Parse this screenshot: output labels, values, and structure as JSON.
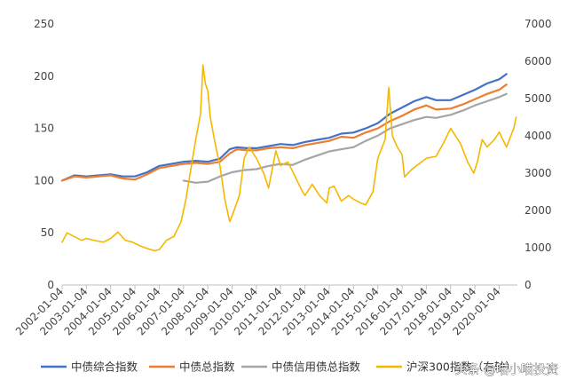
{
  "chart_data": {
    "type": "line",
    "title": "",
    "xlabel": "",
    "ylabel": "",
    "x_ticks": [
      "2002-01-04",
      "2003-01-04",
      "2004-01-04",
      "2005-01-04",
      "2006-01-04",
      "2007-01-04",
      "2008-01-04",
      "2009-01-04",
      "2010-01-04",
      "2011-01-04",
      "2012-01-04",
      "2013-01-04",
      "2014-01-04",
      "2015-01-04",
      "2016-01-04",
      "2017-01-04",
      "2018-01-04",
      "2019-01-04",
      "2020-01-04"
    ],
    "y_left": {
      "min": 0,
      "max": 250,
      "ticks": [
        "0",
        "50",
        "100",
        "150",
        "200",
        "250"
      ]
    },
    "y_right": {
      "min": 0,
      "max": 7000,
      "ticks": [
        "0",
        "1000",
        "2000",
        "3000",
        "4000",
        "5000",
        "6000",
        "7000"
      ]
    },
    "grid": false,
    "legend_position": "bottom",
    "series": [
      {
        "name": "中债综合指数",
        "axis": "left",
        "color": "#4472C4",
        "points": [
          [
            2002.0,
            100
          ],
          [
            2002.5,
            105
          ],
          [
            2003.0,
            104
          ],
          [
            2003.5,
            105
          ],
          [
            2004.0,
            106
          ],
          [
            2004.5,
            104
          ],
          [
            2005.0,
            104
          ],
          [
            2005.5,
            108
          ],
          [
            2006.0,
            114
          ],
          [
            2006.5,
            116
          ],
          [
            2007.0,
            118
          ],
          [
            2007.5,
            119
          ],
          [
            2008.0,
            118
          ],
          [
            2008.5,
            121
          ],
          [
            2008.9,
            130
          ],
          [
            2009.2,
            132
          ],
          [
            2009.6,
            131
          ],
          [
            2010.0,
            131
          ],
          [
            2010.5,
            133
          ],
          [
            2011.0,
            135
          ],
          [
            2011.5,
            134
          ],
          [
            2012.0,
            137
          ],
          [
            2012.5,
            139
          ],
          [
            2013.0,
            141
          ],
          [
            2013.5,
            145
          ],
          [
            2014.0,
            146
          ],
          [
            2014.5,
            150
          ],
          [
            2015.0,
            155
          ],
          [
            2015.5,
            164
          ],
          [
            2016.0,
            170
          ],
          [
            2016.5,
            176
          ],
          [
            2017.0,
            180
          ],
          [
            2017.4,
            177
          ],
          [
            2018.0,
            177
          ],
          [
            2018.5,
            182
          ],
          [
            2019.0,
            187
          ],
          [
            2019.5,
            193
          ],
          [
            2020.0,
            197
          ],
          [
            2020.3,
            202
          ]
        ]
      },
      {
        "name": "中债总指数",
        "axis": "left",
        "color": "#ED7D31",
        "points": [
          [
            2002.0,
            100
          ],
          [
            2002.5,
            104
          ],
          [
            2003.0,
            103
          ],
          [
            2003.5,
            104
          ],
          [
            2004.0,
            105
          ],
          [
            2004.5,
            102
          ],
          [
            2005.0,
            101
          ],
          [
            2005.5,
            106
          ],
          [
            2006.0,
            112
          ],
          [
            2006.5,
            114
          ],
          [
            2007.0,
            116
          ],
          [
            2007.5,
            117
          ],
          [
            2008.0,
            116
          ],
          [
            2008.5,
            118
          ],
          [
            2008.9,
            126
          ],
          [
            2009.2,
            130
          ],
          [
            2009.6,
            129
          ],
          [
            2010.0,
            129
          ],
          [
            2010.5,
            131
          ],
          [
            2011.0,
            132
          ],
          [
            2011.5,
            131
          ],
          [
            2012.0,
            134
          ],
          [
            2012.5,
            136
          ],
          [
            2013.0,
            138
          ],
          [
            2013.5,
            142
          ],
          [
            2014.0,
            141
          ],
          [
            2014.5,
            146
          ],
          [
            2015.0,
            150
          ],
          [
            2015.5,
            157
          ],
          [
            2016.0,
            162
          ],
          [
            2016.5,
            168
          ],
          [
            2017.0,
            172
          ],
          [
            2017.4,
            168
          ],
          [
            2018.0,
            169
          ],
          [
            2018.5,
            173
          ],
          [
            2019.0,
            178
          ],
          [
            2019.5,
            183
          ],
          [
            2020.0,
            187
          ],
          [
            2020.3,
            192
          ]
        ]
      },
      {
        "name": "中债信用债总指数",
        "axis": "left",
        "color": "#A5A5A5",
        "points": [
          [
            2007.0,
            100
          ],
          [
            2007.5,
            98
          ],
          [
            2008.0,
            99
          ],
          [
            2008.5,
            104
          ],
          [
            2009.0,
            108
          ],
          [
            2009.5,
            110
          ],
          [
            2010.0,
            111
          ],
          [
            2010.5,
            114
          ],
          [
            2011.0,
            116
          ],
          [
            2011.5,
            115
          ],
          [
            2012.0,
            120
          ],
          [
            2012.5,
            124
          ],
          [
            2013.0,
            128
          ],
          [
            2013.5,
            130
          ],
          [
            2014.0,
            132
          ],
          [
            2014.5,
            138
          ],
          [
            2015.0,
            143
          ],
          [
            2015.5,
            150
          ],
          [
            2016.0,
            154
          ],
          [
            2016.5,
            158
          ],
          [
            2017.0,
            161
          ],
          [
            2017.4,
            160
          ],
          [
            2018.0,
            163
          ],
          [
            2018.5,
            167
          ],
          [
            2019.0,
            172
          ],
          [
            2019.5,
            176
          ],
          [
            2020.0,
            180
          ],
          [
            2020.3,
            183
          ]
        ]
      },
      {
        "name": "沪深300指数（右轴）",
        "axis": "right",
        "color": "#F5B800",
        "points": [
          [
            2002.0,
            1150
          ],
          [
            2002.2,
            1400
          ],
          [
            2002.5,
            1300
          ],
          [
            2002.8,
            1200
          ],
          [
            2003.0,
            1250
          ],
          [
            2003.3,
            1200
          ],
          [
            2003.7,
            1150
          ],
          [
            2004.0,
            1250
          ],
          [
            2004.3,
            1420
          ],
          [
            2004.6,
            1200
          ],
          [
            2004.9,
            1150
          ],
          [
            2005.2,
            1050
          ],
          [
            2005.5,
            980
          ],
          [
            2005.8,
            920
          ],
          [
            2006.0,
            950
          ],
          [
            2006.3,
            1200
          ],
          [
            2006.6,
            1300
          ],
          [
            2006.9,
            1700
          ],
          [
            2007.1,
            2300
          ],
          [
            2007.3,
            3100
          ],
          [
            2007.5,
            3900
          ],
          [
            2007.7,
            4600
          ],
          [
            2007.8,
            5900
          ],
          [
            2007.9,
            5400
          ],
          [
            2008.0,
            5200
          ],
          [
            2008.1,
            4500
          ],
          [
            2008.3,
            3800
          ],
          [
            2008.5,
            3200
          ],
          [
            2008.7,
            2300
          ],
          [
            2008.9,
            1700
          ],
          [
            2009.0,
            1850
          ],
          [
            2009.3,
            2400
          ],
          [
            2009.5,
            3400
          ],
          [
            2009.7,
            3700
          ],
          [
            2009.9,
            3500
          ],
          [
            2010.0,
            3400
          ],
          [
            2010.3,
            3000
          ],
          [
            2010.5,
            2600
          ],
          [
            2010.8,
            3600
          ],
          [
            2011.0,
            3200
          ],
          [
            2011.3,
            3300
          ],
          [
            2011.6,
            2900
          ],
          [
            2011.9,
            2500
          ],
          [
            2012.0,
            2400
          ],
          [
            2012.3,
            2700
          ],
          [
            2012.6,
            2400
          ],
          [
            2012.9,
            2200
          ],
          [
            2013.0,
            2600
          ],
          [
            2013.2,
            2650
          ],
          [
            2013.5,
            2250
          ],
          [
            2013.8,
            2400
          ],
          [
            2014.0,
            2300
          ],
          [
            2014.3,
            2200
          ],
          [
            2014.5,
            2150
          ],
          [
            2014.8,
            2500
          ],
          [
            2015.0,
            3400
          ],
          [
            2015.3,
            3900
          ],
          [
            2015.45,
            5300
          ],
          [
            2015.6,
            4000
          ],
          [
            2015.8,
            3700
          ],
          [
            2016.0,
            3500
          ],
          [
            2016.1,
            2900
          ],
          [
            2016.4,
            3100
          ],
          [
            2016.8,
            3300
          ],
          [
            2017.0,
            3400
          ],
          [
            2017.4,
            3450
          ],
          [
            2017.7,
            3800
          ],
          [
            2018.0,
            4200
          ],
          [
            2018.1,
            4100
          ],
          [
            2018.4,
            3800
          ],
          [
            2018.7,
            3300
          ],
          [
            2018.95,
            3000
          ],
          [
            2019.1,
            3300
          ],
          [
            2019.3,
            3900
          ],
          [
            2019.5,
            3700
          ],
          [
            2019.8,
            3900
          ],
          [
            2020.0,
            4100
          ],
          [
            2020.3,
            3700
          ],
          [
            2020.6,
            4200
          ],
          [
            2020.7,
            4500
          ]
        ]
      }
    ]
  },
  "watermark": "头条 @喵小喵投资"
}
